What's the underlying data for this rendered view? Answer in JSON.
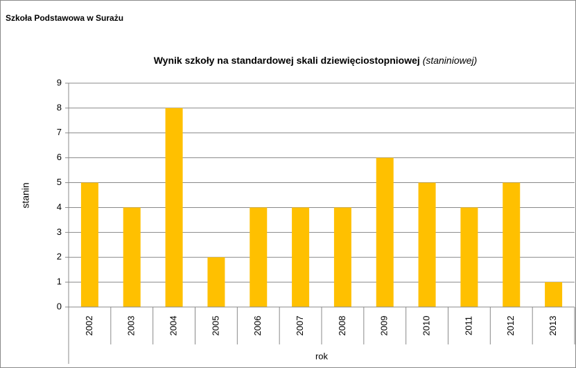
{
  "header": "Szkoła Podstawowa w Surażu",
  "chart_data": {
    "type": "bar",
    "title": "Wynik szkoły na standardowej skali dziewięciostopniowej",
    "subtitle": "(staniniowej)",
    "categories": [
      "2002",
      "2003",
      "2004",
      "2005",
      "2006",
      "2007",
      "2008",
      "2009",
      "2010",
      "2011",
      "2012",
      "2013"
    ],
    "values": [
      5,
      4,
      8,
      2,
      4,
      4,
      4,
      6,
      5,
      4,
      5,
      1
    ],
    "color": "#ffc000",
    "ylim": [
      0,
      9
    ],
    "yticks": [
      0,
      1,
      2,
      3,
      4,
      5,
      6,
      7,
      8,
      9
    ],
    "grid": true,
    "ylabel": "stanin",
    "xlabel": "rok"
  }
}
